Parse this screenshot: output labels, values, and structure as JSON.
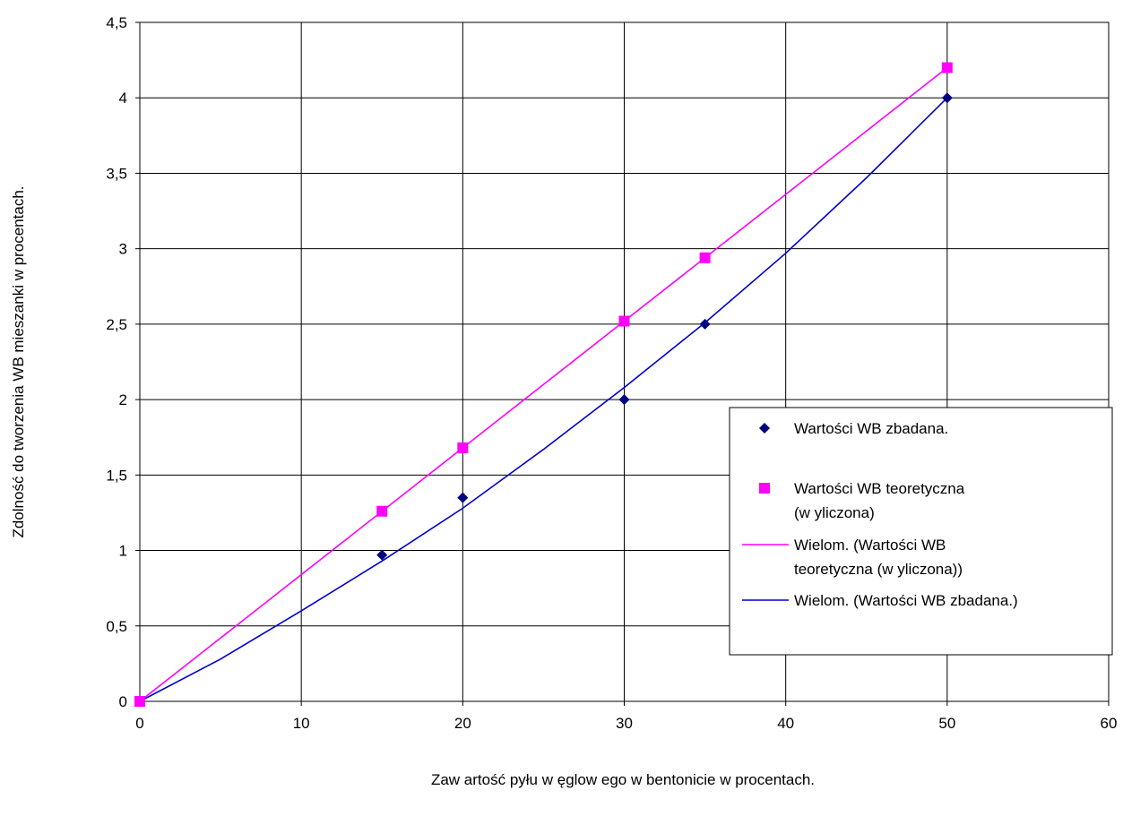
{
  "chart_data": {
    "type": "scatter",
    "title": "",
    "xlabel": "Zaw artość pyłu w ęglow ego w  bentonicie w  procentach.",
    "ylabel": "Zdolność do tworzenia WB mieszanki w procentach.",
    "xlim": [
      0,
      60
    ],
    "ylim": [
      0,
      4.5
    ],
    "x_ticks": [
      "0",
      "10",
      "20",
      "30",
      "40",
      "50",
      "60"
    ],
    "y_ticks": [
      "0",
      "0,5",
      "1",
      "1,5",
      "2",
      "2,5",
      "3",
      "3,5",
      "4",
      "4,5"
    ],
    "grid": true,
    "legend_position": "right",
    "series": [
      {
        "name": "Wartości WB zbadana.",
        "kind": "points",
        "marker": "diamond",
        "color": "#000080",
        "x": [
          0,
          15,
          20,
          30,
          35,
          50
        ],
        "y": [
          0,
          0.97,
          1.35,
          2.0,
          2.5,
          4.0
        ]
      },
      {
        "name": "Wartości WB teoretyczna (w yliczona)",
        "kind": "points",
        "marker": "square",
        "color": "#FF00FF",
        "x": [
          0,
          15,
          20,
          30,
          35,
          50
        ],
        "y": [
          0,
          1.26,
          1.68,
          2.52,
          2.94,
          4.2
        ]
      },
      {
        "name": "Wielom. (Wartości WB teoretyczna (w yliczona))",
        "kind": "trendline",
        "color": "#FF00FF",
        "x": [
          0,
          5,
          10,
          15,
          20,
          25,
          30,
          35,
          40,
          45,
          50
        ],
        "y": [
          0,
          0.42,
          0.84,
          1.26,
          1.68,
          2.1,
          2.52,
          2.94,
          3.36,
          3.78,
          4.2
        ]
      },
      {
        "name": "Wielom. (Wartości WB zbadana.)",
        "kind": "trendline",
        "color": "#0000CC",
        "x": [
          0,
          5,
          10,
          15,
          20,
          25,
          30,
          35,
          40,
          45,
          50
        ],
        "y": [
          0,
          0.28,
          0.6,
          0.93,
          1.28,
          1.67,
          2.08,
          2.51,
          2.97,
          3.47,
          4.0
        ]
      }
    ],
    "legend": [
      {
        "label_lines": [
          "Wartości WB zbadana."
        ],
        "symbol": "diamond",
        "color": "#000080"
      },
      {
        "label_lines": [
          "Wartości WB teoretyczna",
          "(w yliczona)"
        ],
        "symbol": "square",
        "color": "#FF00FF"
      },
      {
        "label_lines": [
          "Wielom. (Wartości WB",
          "teoretyczna (w yliczona))"
        ],
        "symbol": "line",
        "color": "#FF00FF"
      },
      {
        "label_lines": [
          "Wielom. (Wartości WB zbadana.)"
        ],
        "symbol": "line",
        "color": "#0000CC"
      }
    ]
  }
}
